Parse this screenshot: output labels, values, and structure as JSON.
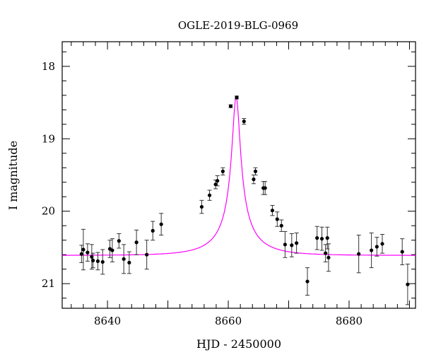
{
  "chart_data": {
    "type": "scatter",
    "title": "OGLE-2019-BLG-0969",
    "xlabel": "HJD - 2450000",
    "ylabel": "I magnitude",
    "xlim": [
      8632.5,
      8691
    ],
    "ylim": [
      21.34,
      17.66
    ],
    "y_inverted": true,
    "grid": false,
    "x_ticks": [
      "8640",
      "8660",
      "8680"
    ],
    "y_ticks": [
      "18",
      "19",
      "20",
      "21"
    ],
    "colors": {
      "points": "#000000",
      "model": "#ff00ff",
      "frame": "#000000"
    },
    "series": [
      {
        "kind": "points_with_errorbars",
        "x": [
          8635.7,
          8636.0,
          8636.7,
          8637.4,
          8637.6,
          8638.4,
          8639.2,
          8640.4,
          8640.8,
          8641.9,
          8642.7,
          8643.6,
          8644.8,
          8646.5,
          8647.5,
          8648.9,
          8655.6,
          8656.9,
          8657.9,
          8658.2,
          8659.1,
          8660.4,
          8661.4,
          8662.6,
          8664.2,
          8664.5,
          8665.8,
          8666.1,
          8667.3,
          8668.1,
          8668.8,
          8669.4,
          8670.5,
          8671.3,
          8673.1,
          8674.7,
          8675.5,
          8676.1,
          8676.4,
          8676.6,
          8681.6,
          8683.7,
          8684.6,
          8685.5,
          8688.8,
          8689.7
        ],
        "y": [
          20.59,
          20.53,
          20.57,
          20.63,
          20.68,
          20.69,
          20.7,
          20.52,
          20.54,
          20.41,
          20.66,
          20.71,
          20.43,
          20.6,
          20.27,
          20.18,
          19.94,
          19.78,
          19.63,
          19.58,
          19.45,
          18.55,
          18.43,
          18.76,
          19.56,
          19.45,
          19.68,
          19.68,
          19.99,
          20.11,
          20.2,
          20.46,
          20.47,
          20.44,
          20.97,
          20.37,
          20.38,
          20.58,
          20.37,
          20.64,
          20.59,
          20.54,
          20.49,
          20.45,
          20.56,
          21.01
        ],
        "err": [
          0.12,
          0.28,
          0.12,
          0.17,
          0.1,
          0.12,
          0.17,
          0.12,
          0.16,
          0.1,
          0.2,
          0.15,
          0.17,
          0.2,
          0.13,
          0.15,
          0.09,
          0.07,
          0.06,
          0.07,
          0.05,
          0.02,
          0.02,
          0.04,
          0.06,
          0.05,
          0.09,
          0.09,
          0.07,
          0.1,
          0.08,
          0.18,
          0.16,
          0.14,
          0.19,
          0.16,
          0.16,
          0.12,
          0.15,
          0.19,
          0.26,
          0.24,
          0.13,
          0.13,
          0.18,
          0.28
        ]
      },
      {
        "kind": "model_curve",
        "baseline": 20.61,
        "peak": 18.42,
        "t0": 8661.3,
        "tE": 7.0,
        "u0": 0.1
      }
    ]
  }
}
